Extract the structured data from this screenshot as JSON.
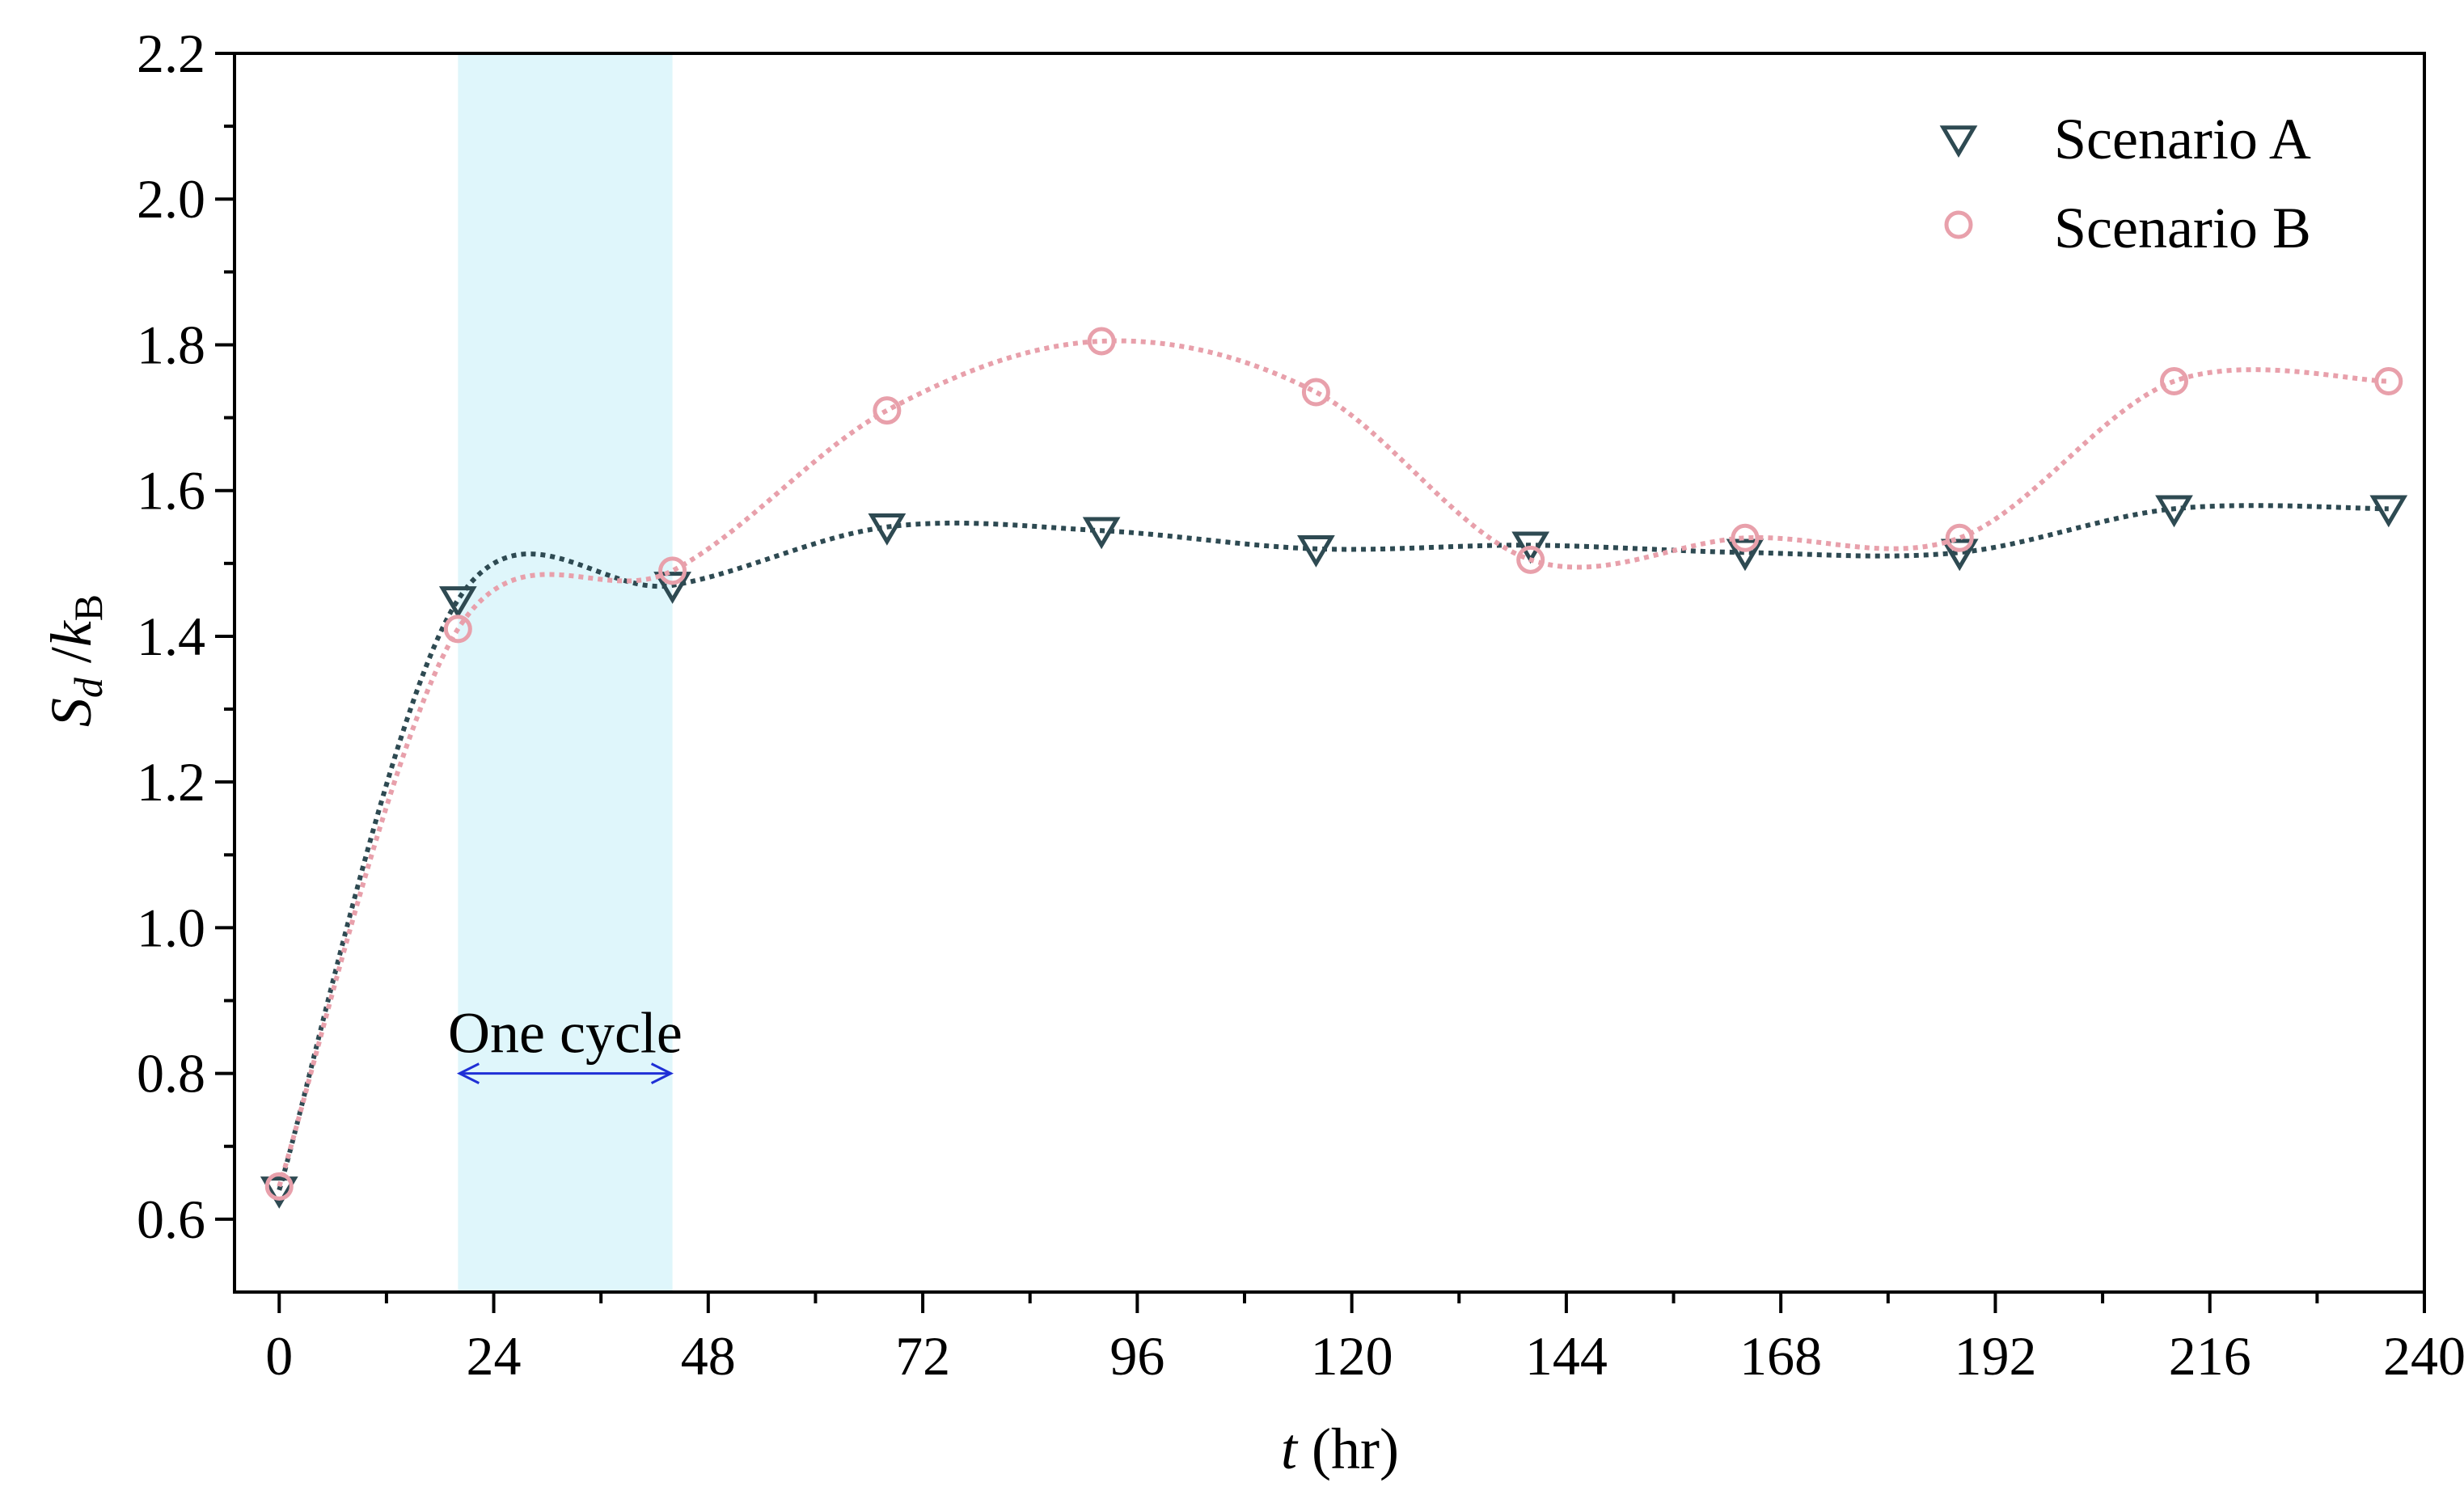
{
  "chart_data": {
    "type": "line",
    "xlabel_var": "t",
    "xlabel_unit": " (hr)",
    "ylabel_main": "S",
    "ylabel_sub1": "d",
    "ylabel_slash": " /",
    "ylabel_k": "k",
    "ylabel_sub2": "B",
    "xlim": [
      -5,
      240
    ],
    "ylim": [
      0.5,
      2.2
    ],
    "xticks": [
      0,
      24,
      48,
      72,
      96,
      120,
      144,
      168,
      192,
      216,
      240
    ],
    "xtick_labels": [
      "0",
      "24",
      "48",
      "72",
      "96",
      "120",
      "144",
      "168",
      "192",
      "216",
      "240"
    ],
    "yticks": [
      0.6,
      0.8,
      1.0,
      1.2,
      1.4,
      1.6,
      1.8,
      2.0,
      2.2
    ],
    "ytick_labels": [
      "0.6",
      "0.8",
      "1.0",
      "1.2",
      "1.4",
      "1.6",
      "1.8",
      "2.0",
      "2.2"
    ],
    "legend_position": "top-right",
    "grid": false,
    "x": [
      0,
      20,
      44,
      68,
      92,
      116,
      140,
      164,
      188,
      212,
      236
    ],
    "series": [
      {
        "name": "Scenario A",
        "marker": "triangle-down",
        "color": "#2e4a52",
        "values": [
          0.64,
          1.45,
          1.47,
          1.55,
          1.545,
          1.52,
          1.525,
          1.515,
          1.515,
          1.575,
          1.575
        ]
      },
      {
        "name": "Scenario B",
        "marker": "circle",
        "color": "#e8a0ab",
        "values": [
          0.645,
          1.41,
          1.49,
          1.71,
          1.805,
          1.735,
          1.505,
          1.535,
          1.535,
          1.75,
          1.75
        ]
      }
    ],
    "shaded_region": {
      "x_start": 20,
      "x_end": 44,
      "color": "#dff6fb"
    },
    "annotation": {
      "text": "One cycle",
      "x_start": 20,
      "x_end": 44,
      "y": 0.8,
      "arrow_color": "#1f2fd6"
    }
  }
}
